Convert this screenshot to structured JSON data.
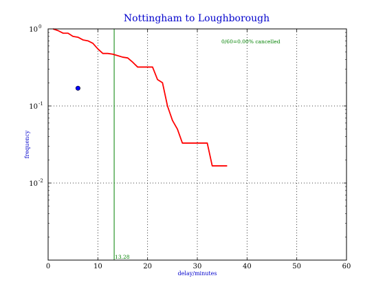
{
  "chart_data": {
    "type": "line",
    "title": "Nottingham to Loughborough",
    "xlabel": "delay/minutes",
    "ylabel": "frequency",
    "xlim": [
      0,
      60
    ],
    "ylim": [
      0.001,
      1
    ],
    "yscale": "log",
    "grid": true,
    "x_ticks": [
      "0",
      "10",
      "20",
      "30",
      "40",
      "50",
      "60"
    ],
    "y_ticks": [
      {
        "value": 1,
        "base": "10",
        "exp": "0"
      },
      {
        "value": 0.1,
        "base": "10",
        "exp": "-1"
      },
      {
        "value": 0.01,
        "base": "10",
        "exp": "-2"
      }
    ],
    "series": [
      {
        "color": "#ff0000",
        "x": [
          1,
          2,
          3,
          4,
          5,
          6,
          7,
          8,
          9,
          10,
          11,
          12,
          13,
          14,
          15,
          16,
          17,
          18,
          19,
          20,
          21,
          22,
          23,
          24,
          25,
          26,
          27,
          28,
          29,
          30,
          31,
          32,
          33,
          34,
          35,
          36
        ],
        "y": [
          1.0,
          0.95,
          0.88,
          0.88,
          0.8,
          0.78,
          0.72,
          0.7,
          0.65,
          0.55,
          0.48,
          0.48,
          0.47,
          0.45,
          0.43,
          0.42,
          0.37,
          0.32,
          0.32,
          0.32,
          0.32,
          0.22,
          0.2,
          0.1,
          0.065,
          0.05,
          0.033,
          0.033,
          0.033,
          0.033,
          0.033,
          0.033,
          0.0167,
          0.0167,
          0.0167,
          0.0167
        ]
      }
    ],
    "point": {
      "x": 6,
      "y": 0.17,
      "color": "#0000ff"
    },
    "vline": {
      "x": 13.28,
      "label": "13.28",
      "color": "#008000"
    },
    "annotation": {
      "text": "0/60=0.00% cancelled",
      "color": "#008000"
    }
  }
}
